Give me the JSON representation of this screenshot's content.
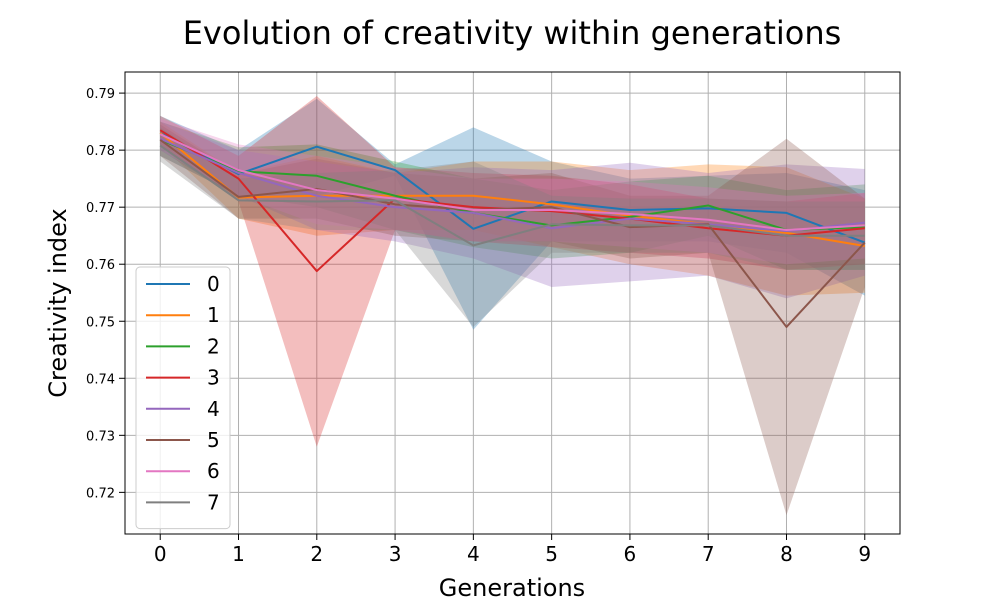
{
  "chart_data": {
    "type": "line",
    "title": "Evolution of creativity within generations",
    "xlabel": "Generations",
    "ylabel": "Creativity index",
    "x": [
      0,
      1,
      2,
      3,
      4,
      5,
      6,
      7,
      8,
      9
    ],
    "xticks": [
      "0",
      "1",
      "2",
      "3",
      "4",
      "5",
      "6",
      "7",
      "8",
      "9"
    ],
    "xlim": [
      -0.45,
      9.45
    ],
    "ylim": [
      0.7127,
      0.7937
    ],
    "yticks": [
      0.72,
      0.73,
      0.74,
      0.75,
      0.76,
      0.77,
      0.78,
      0.79
    ],
    "ytick_labels": [
      "0.72",
      "0.73",
      "0.74",
      "0.75",
      "0.76",
      "0.77",
      "0.78",
      "0.79"
    ],
    "grid": true,
    "legend_position": "lower-left",
    "series": [
      {
        "name": "0",
        "color": "#1f77b4",
        "values": [
          0.783,
          0.7758,
          0.7806,
          0.7765,
          0.7662,
          0.771,
          0.7695,
          0.7698,
          0.769,
          0.7638
        ],
        "lower": [
          0.78,
          0.7715,
          0.772,
          0.7755,
          0.7485,
          0.764,
          0.764,
          0.764,
          0.762,
          0.7545
        ],
        "upper": [
          0.786,
          0.78,
          0.789,
          0.7775,
          0.784,
          0.778,
          0.775,
          0.7755,
          0.776,
          0.773
        ]
      },
      {
        "name": "1",
        "color": "#ff7f0e",
        "values": [
          0.783,
          0.7717,
          0.772,
          0.772,
          0.772,
          0.7705,
          0.7685,
          0.767,
          0.7655,
          0.7632
        ],
        "lower": [
          0.781,
          0.768,
          0.765,
          0.766,
          0.766,
          0.763,
          0.76,
          0.758,
          0.7545,
          0.755
        ],
        "upper": [
          0.785,
          0.776,
          0.779,
          0.776,
          0.778,
          0.778,
          0.7765,
          0.7775,
          0.777,
          0.7715
        ]
      },
      {
        "name": "2",
        "color": "#2ca02c",
        "values": [
          0.7818,
          0.7763,
          0.7755,
          0.772,
          0.769,
          0.7668,
          0.7683,
          0.7703,
          0.766,
          0.7665
        ],
        "lower": [
          0.779,
          0.772,
          0.77,
          0.766,
          0.763,
          0.761,
          0.762,
          0.765,
          0.759,
          0.759
        ],
        "upper": [
          0.785,
          0.7805,
          0.781,
          0.778,
          0.775,
          0.773,
          0.7745,
          0.7755,
          0.773,
          0.774
        ]
      },
      {
        "name": "3",
        "color": "#d62728",
        "values": [
          0.7835,
          0.775,
          0.7588,
          0.7715,
          0.77,
          0.7693,
          0.768,
          0.7663,
          0.765,
          0.7663
        ],
        "lower": [
          0.781,
          0.771,
          0.728,
          0.766,
          0.764,
          0.763,
          0.762,
          0.761,
          0.759,
          0.76
        ],
        "upper": [
          0.786,
          0.779,
          0.7895,
          0.777,
          0.776,
          0.7755,
          0.774,
          0.7715,
          0.771,
          0.7725
        ]
      },
      {
        "name": "4",
        "color": "#9467bd",
        "values": [
          0.782,
          0.776,
          0.772,
          0.77,
          0.769,
          0.7663,
          0.768,
          0.767,
          0.7658,
          0.7673
        ],
        "lower": [
          0.779,
          0.772,
          0.766,
          0.764,
          0.761,
          0.756,
          0.757,
          0.758,
          0.754,
          0.758
        ],
        "upper": [
          0.785,
          0.78,
          0.778,
          0.776,
          0.777,
          0.7765,
          0.7778,
          0.776,
          0.7775,
          0.7767
        ]
      },
      {
        "name": "5",
        "color": "#8c564b",
        "values": [
          0.7818,
          0.7718,
          0.7732,
          0.7705,
          0.7695,
          0.77,
          0.7665,
          0.767,
          0.749,
          0.7638
        ],
        "lower": [
          0.779,
          0.768,
          0.768,
          0.765,
          0.764,
          0.764,
          0.761,
          0.762,
          0.716,
          0.756
        ],
        "upper": [
          0.7845,
          0.7758,
          0.7785,
          0.776,
          0.775,
          0.776,
          0.772,
          0.772,
          0.782,
          0.7715
        ]
      },
      {
        "name": "6",
        "color": "#e377c2",
        "values": [
          0.7828,
          0.7765,
          0.773,
          0.7715,
          0.7695,
          0.7695,
          0.7688,
          0.7678,
          0.766,
          0.7668
        ],
        "lower": [
          0.78,
          0.772,
          0.767,
          0.766,
          0.764,
          0.764,
          0.763,
          0.762,
          0.76,
          0.761
        ],
        "upper": [
          0.7855,
          0.781,
          0.779,
          0.777,
          0.775,
          0.775,
          0.7745,
          0.7735,
          0.772,
          0.7725
        ]
      },
      {
        "name": "7",
        "color": "#7f7f7f",
        "values": [
          0.7808,
          0.7712,
          0.771,
          0.7712,
          0.7633,
          0.767,
          0.7668,
          0.7668,
          0.765,
          0.765
        ],
        "lower": [
          0.778,
          0.768,
          0.766,
          0.766,
          0.749,
          0.762,
          0.762,
          0.762,
          0.759,
          0.759
        ],
        "upper": [
          0.784,
          0.775,
          0.776,
          0.7765,
          0.778,
          0.772,
          0.7715,
          0.7715,
          0.771,
          0.771
        ]
      }
    ]
  }
}
